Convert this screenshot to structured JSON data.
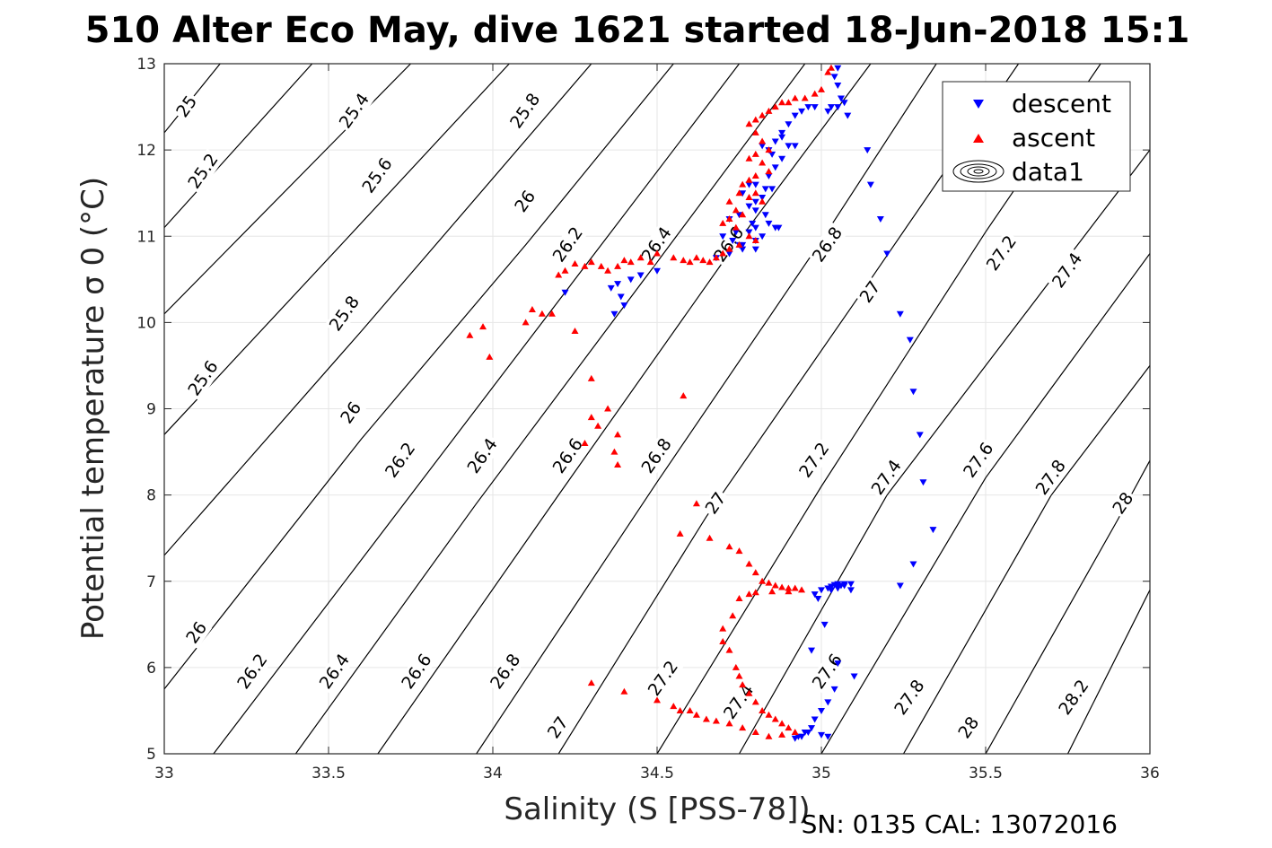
{
  "chart_data": {
    "type": "scatter",
    "title": "510 Alter Eco May, dive 1621 started 18-Jun-2018 15:1",
    "xlabel": "Salinity (S [PSS-78])",
    "ylabel": "Potential temperature σ 0 (°C)",
    "xlim": [
      33,
      36
    ],
    "ylim": [
      5,
      13
    ],
    "xticks": [
      33,
      33.5,
      34,
      34.5,
      35,
      35.5,
      36
    ],
    "xtick_labels": [
      "33",
      "33.5",
      "34",
      "34.5",
      "35",
      "35.5",
      "36"
    ],
    "yticks": [
      5,
      6,
      7,
      8,
      9,
      10,
      11,
      12,
      13
    ],
    "ytick_labels": [
      "5",
      "6",
      "7",
      "8",
      "9",
      "10",
      "11",
      "12",
      "13"
    ],
    "grid": true,
    "legend": {
      "placement": "top-right",
      "entries": [
        "descent",
        "ascent",
        "data1"
      ]
    },
    "footer": "SN: 0135  CAL: 13072016",
    "colors": {
      "descent": "#0000ff",
      "ascent": "#ff0000",
      "contour": "#000000"
    },
    "contours": [
      {
        "level": 25.0,
        "points": [
          [
            33.0,
            12.2
          ],
          [
            33.17,
            13.0
          ]
        ]
      },
      {
        "level": 25.2,
        "points": [
          [
            33.0,
            11.1
          ],
          [
            33.45,
            13.0
          ]
        ]
      },
      {
        "level": 25.4,
        "points": [
          [
            33.0,
            10.1
          ],
          [
            33.75,
            13.0
          ]
        ]
      },
      {
        "level": 25.6,
        "points": [
          [
            33.0,
            8.7
          ],
          [
            33.55,
            10.95
          ],
          [
            34.05,
            13.0
          ]
        ]
      },
      {
        "level": 25.8,
        "points": [
          [
            33.0,
            7.3
          ],
          [
            33.6,
            9.9
          ],
          [
            34.3,
            13.0
          ]
        ]
      },
      {
        "level": 26.0,
        "points": [
          [
            33.0,
            5.75
          ],
          [
            33.6,
            8.65
          ],
          [
            34.1,
            10.9
          ],
          [
            34.55,
            13.0
          ]
        ]
      },
      {
        "level": 26.2,
        "points": [
          [
            33.15,
            5.0
          ],
          [
            33.75,
            8.0
          ],
          [
            34.25,
            10.5
          ],
          [
            34.75,
            13.0
          ]
        ]
      },
      {
        "level": 26.4,
        "points": [
          [
            33.4,
            5.0
          ],
          [
            33.95,
            7.9
          ],
          [
            34.5,
            10.7
          ],
          [
            34.95,
            13.0
          ]
        ]
      },
      {
        "level": 26.6,
        "points": [
          [
            33.65,
            5.0
          ],
          [
            34.2,
            8.0
          ],
          [
            34.7,
            10.7
          ],
          [
            35.15,
            13.0
          ]
        ]
      },
      {
        "level": 26.8,
        "points": [
          [
            33.95,
            5.0
          ],
          [
            34.5,
            8.15
          ],
          [
            35.0,
            10.95
          ],
          [
            35.35,
            13.0
          ]
        ]
      },
      {
        "level": 27.0,
        "points": [
          [
            34.2,
            5.0
          ],
          [
            34.65,
            7.75
          ],
          [
            35.15,
            10.5
          ],
          [
            35.6,
            13.0
          ]
        ]
      },
      {
        "level": 27.2,
        "points": [
          [
            34.5,
            5.0
          ],
          [
            35.0,
            8.1
          ],
          [
            35.5,
            11.05
          ],
          [
            35.85,
            13.0
          ]
        ]
      },
      {
        "level": 27.4,
        "points": [
          [
            34.75,
            5.0
          ],
          [
            35.2,
            8.0
          ],
          [
            35.7,
            10.5
          ],
          [
            36.0,
            12.0
          ]
        ]
      },
      {
        "level": 27.6,
        "points": [
          [
            35.0,
            5.0
          ],
          [
            35.5,
            8.2
          ],
          [
            36.0,
            10.8
          ]
        ]
      },
      {
        "level": 27.8,
        "points": [
          [
            35.25,
            5.0
          ],
          [
            35.7,
            8.0
          ],
          [
            36.0,
            9.5
          ]
        ]
      },
      {
        "level": 28.0,
        "points": [
          [
            35.5,
            5.0
          ],
          [
            35.9,
            7.7
          ],
          [
            36.0,
            8.4
          ]
        ]
      },
      {
        "level": 28.2,
        "points": [
          [
            35.75,
            5.0
          ],
          [
            36.0,
            6.9
          ]
        ]
      }
    ],
    "contour_labels": [
      {
        "text": "25",
        "x": 33.07,
        "y": 12.5
      },
      {
        "text": "25.2",
        "x": 33.12,
        "y": 11.75
      },
      {
        "text": "25.4",
        "x": 33.58,
        "y": 12.45
      },
      {
        "text": "25.6",
        "x": 33.65,
        "y": 11.7
      },
      {
        "text": "25.8",
        "x": 34.1,
        "y": 12.45
      },
      {
        "text": "26",
        "x": 34.1,
        "y": 11.4
      },
      {
        "text": "26.2",
        "x": 34.23,
        "y": 10.9
      },
      {
        "text": "26.4",
        "x": 34.5,
        "y": 10.9
      },
      {
        "text": "26.6",
        "x": 34.72,
        "y": 10.9
      },
      {
        "text": "26.8",
        "x": 35.02,
        "y": 10.9
      },
      {
        "text": "27",
        "x": 35.15,
        "y": 10.35
      },
      {
        "text": "27.2",
        "x": 35.55,
        "y": 10.8
      },
      {
        "text": "27.4",
        "x": 35.75,
        "y": 10.6
      },
      {
        "text": "25.8",
        "x": 33.55,
        "y": 10.1
      },
      {
        "text": "25.6",
        "x": 33.12,
        "y": 9.35
      },
      {
        "text": "26",
        "x": 33.57,
        "y": 8.95
      },
      {
        "text": "26.2",
        "x": 33.72,
        "y": 8.4
      },
      {
        "text": "26.4",
        "x": 33.97,
        "y": 8.45
      },
      {
        "text": "26.6",
        "x": 34.23,
        "y": 8.45
      },
      {
        "text": "26.8",
        "x": 34.5,
        "y": 8.45
      },
      {
        "text": "27",
        "x": 34.68,
        "y": 7.9
      },
      {
        "text": "27.2",
        "x": 34.98,
        "y": 8.4
      },
      {
        "text": "27.4",
        "x": 35.2,
        "y": 8.2
      },
      {
        "text": "27.6",
        "x": 35.48,
        "y": 8.4
      },
      {
        "text": "27.8",
        "x": 35.7,
        "y": 8.2
      },
      {
        "text": "28",
        "x": 35.92,
        "y": 7.9
      },
      {
        "text": "26",
        "x": 33.1,
        "y": 6.4
      },
      {
        "text": "26.2",
        "x": 33.27,
        "y": 5.95
      },
      {
        "text": "26.4",
        "x": 33.52,
        "y": 5.95
      },
      {
        "text": "26.6",
        "x": 33.77,
        "y": 5.95
      },
      {
        "text": "26.8",
        "x": 34.04,
        "y": 5.95
      },
      {
        "text": "27",
        "x": 34.2,
        "y": 5.3
      },
      {
        "text": "27.2",
        "x": 34.52,
        "y": 5.87
      },
      {
        "text": "27.4",
        "x": 34.75,
        "y": 5.6
      },
      {
        "text": "27.6",
        "x": 35.02,
        "y": 5.95
      },
      {
        "text": "27.8",
        "x": 35.27,
        "y": 5.65
      },
      {
        "text": "28",
        "x": 35.45,
        "y": 5.3
      },
      {
        "text": "28.2",
        "x": 35.77,
        "y": 5.65
      }
    ],
    "series": [
      {
        "name": "descent",
        "marker": "triangle-down",
        "x": [
          35.05,
          35.04,
          35.05,
          35.06,
          35.05,
          35.07,
          35.08,
          35.03,
          35.02,
          34.98,
          34.96,
          34.94,
          34.92,
          34.9,
          34.88,
          34.86,
          34.84,
          34.88,
          34.9,
          34.85,
          34.82,
          34.88,
          34.92,
          34.86,
          34.84,
          34.8,
          34.83,
          34.78,
          34.76,
          34.8,
          34.82,
          34.85,
          34.78,
          34.75,
          34.72,
          34.8,
          34.83,
          34.86,
          34.79,
          34.74,
          34.7,
          34.78,
          34.8,
          34.84,
          34.87,
          34.82,
          34.8,
          34.76,
          34.75,
          34.72,
          34.68,
          34.8,
          34.76,
          34.73,
          34.5,
          34.45,
          34.42,
          34.38,
          34.36,
          34.39,
          34.4,
          34.37,
          34.22,
          35.14,
          35.15,
          35.18,
          35.2,
          35.24,
          35.27,
          35.28,
          35.3,
          35.31,
          35.34,
          35.28,
          35.24,
          35.09,
          35.07,
          35.05,
          35.04,
          35.03,
          35.02,
          35.0,
          34.98,
          34.99,
          35.01,
          34.97,
          35.05,
          35.1,
          35.04,
          35.02,
          35.0,
          34.98,
          34.97,
          34.96,
          34.94,
          34.92,
          34.93,
          34.95,
          35.0,
          35.02,
          35.03,
          35.05,
          35.06,
          35.07,
          35.09,
          35.05,
          35.03
        ],
        "y": [
          12.95,
          12.85,
          12.75,
          12.6,
          12.5,
          12.55,
          12.4,
          12.5,
          12.45,
          12.5,
          12.5,
          12.45,
          12.4,
          12.3,
          12.2,
          12.1,
          12.0,
          12.15,
          12.05,
          11.95,
          12.05,
          11.9,
          12.05,
          11.8,
          11.7,
          11.6,
          11.55,
          11.6,
          11.5,
          11.4,
          11.45,
          11.55,
          11.35,
          11.25,
          11.2,
          11.3,
          11.25,
          11.1,
          11.15,
          11.05,
          11.0,
          11.05,
          11.1,
          11.15,
          11.1,
          11.0,
          10.95,
          10.85,
          10.9,
          10.8,
          10.75,
          10.85,
          10.9,
          10.95,
          10.6,
          10.55,
          10.5,
          10.45,
          10.4,
          10.3,
          10.2,
          10.1,
          10.35,
          12.0,
          11.6,
          11.2,
          10.8,
          10.1,
          9.8,
          9.2,
          8.7,
          8.15,
          7.6,
          7.2,
          6.95,
          6.9,
          6.95,
          6.97,
          6.96,
          6.94,
          6.92,
          6.9,
          6.85,
          6.8,
          6.5,
          6.2,
          6.05,
          5.9,
          5.75,
          5.6,
          5.5,
          5.4,
          5.3,
          5.25,
          5.2,
          5.18,
          5.2,
          5.25,
          5.22,
          5.2,
          6.9,
          6.92,
          6.95,
          6.97,
          6.97,
          6.93,
          6.9
        ]
      },
      {
        "name": "ascent",
        "marker": "triangle-up",
        "x": [
          35.03,
          35.02,
          35.0,
          34.98,
          34.95,
          34.92,
          34.9,
          34.88,
          34.86,
          34.84,
          34.82,
          34.8,
          34.78,
          34.8,
          34.82,
          34.84,
          34.8,
          34.78,
          34.82,
          34.84,
          34.8,
          34.78,
          34.76,
          34.8,
          34.82,
          34.78,
          34.75,
          34.72,
          34.74,
          34.76,
          34.72,
          34.7,
          34.74,
          34.78,
          34.8,
          34.75,
          34.72,
          34.7,
          34.68,
          34.66,
          34.64,
          34.62,
          34.6,
          34.58,
          34.55,
          34.5,
          34.48,
          34.45,
          34.42,
          34.4,
          34.38,
          34.35,
          34.33,
          34.3,
          34.28,
          34.25,
          34.22,
          34.2,
          34.15,
          34.1,
          34.12,
          34.18,
          34.25,
          33.93,
          33.97,
          33.99,
          34.3,
          34.3,
          34.35,
          34.38,
          34.32,
          34.37,
          34.38,
          34.28,
          34.58,
          34.57,
          34.62,
          34.66,
          34.72,
          34.75,
          34.78,
          34.8,
          34.82,
          34.84,
          34.86,
          34.88,
          34.9,
          34.92,
          34.94,
          34.9,
          34.85,
          34.8,
          34.78,
          34.75,
          34.73,
          34.7,
          34.7,
          34.72,
          34.74,
          34.75,
          34.76,
          34.78,
          34.8,
          34.82,
          34.84,
          34.86,
          34.88,
          34.9,
          34.92,
          34.88,
          34.84,
          34.8,
          34.76,
          34.72,
          34.68,
          34.65,
          34.62,
          34.6,
          34.57,
          34.55,
          34.5,
          34.4,
          34.3
        ],
        "y": [
          12.95,
          12.9,
          12.7,
          12.65,
          12.6,
          12.6,
          12.55,
          12.55,
          12.5,
          12.45,
          12.4,
          12.35,
          12.3,
          12.2,
          12.1,
          12.0,
          11.95,
          11.9,
          11.85,
          11.75,
          11.7,
          11.65,
          11.6,
          11.5,
          11.4,
          11.45,
          11.5,
          11.4,
          11.3,
          11.25,
          11.2,
          11.15,
          11.1,
          11.0,
          10.95,
          10.9,
          10.85,
          10.8,
          10.75,
          10.7,
          10.72,
          10.75,
          10.7,
          10.72,
          10.75,
          10.8,
          10.7,
          10.75,
          10.7,
          10.72,
          10.65,
          10.6,
          10.65,
          10.7,
          10.65,
          10.68,
          10.6,
          10.55,
          10.1,
          10.0,
          10.15,
          10.1,
          9.9,
          9.85,
          9.95,
          9.6,
          8.9,
          9.35,
          9.0,
          8.7,
          8.8,
          8.5,
          8.35,
          8.6,
          9.15,
          7.55,
          7.9,
          7.5,
          7.4,
          7.35,
          7.2,
          7.1,
          7.0,
          6.98,
          6.95,
          6.93,
          6.92,
          6.92,
          6.9,
          6.88,
          6.88,
          6.87,
          6.85,
          6.8,
          6.6,
          6.45,
          6.3,
          6.2,
          6.0,
          5.9,
          5.8,
          5.7,
          5.6,
          5.5,
          5.45,
          5.4,
          5.35,
          5.3,
          5.25,
          5.22,
          5.2,
          5.25,
          5.3,
          5.35,
          5.38,
          5.4,
          5.45,
          5.5,
          5.5,
          5.55,
          5.62,
          5.72,
          5.82
        ]
      },
      {
        "name": "data1",
        "marker": "contour-ellipses",
        "x": [],
        "y": []
      }
    ]
  }
}
